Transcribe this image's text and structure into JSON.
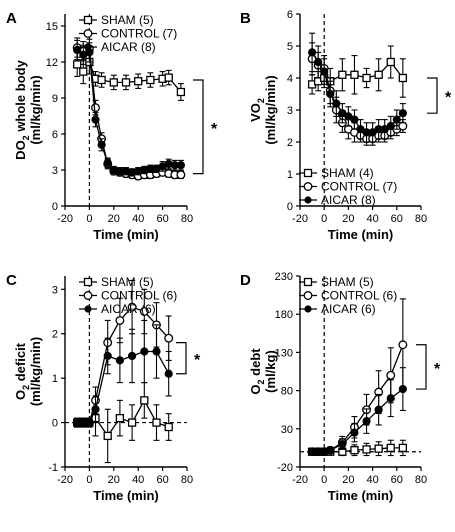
{
  "chart_data": [
    {
      "panel": "A",
      "type": "line",
      "ylabel": [
        "DO",
        "2",
        " whole body"
      ],
      "yunit": "(ml/kg/min)",
      "xlabel": "Time (min)",
      "xlim": [
        -20,
        80
      ],
      "ylim": [
        0,
        16
      ],
      "xticks": [
        "-20",
        "0",
        "20",
        "40",
        "60",
        "80"
      ],
      "yticks": [
        "0",
        "3",
        "6",
        "9",
        "12",
        "15"
      ],
      "ytick_values": [
        0,
        3,
        6,
        9,
        12,
        15
      ],
      "significance": "*",
      "series": [
        {
          "name": "SHAM (5)",
          "marker": "square",
          "points": [
            [
              -10,
              11.8
            ],
            [
              -5,
              11.2
            ],
            [
              0,
              12.0
            ],
            [
              5,
              10.6
            ],
            [
              10,
              10.5
            ],
            [
              20,
              10.3
            ],
            [
              30,
              10.3
            ],
            [
              40,
              10.4
            ],
            [
              50,
              10.5
            ],
            [
              60,
              10.6
            ],
            [
              65,
              10.7
            ],
            [
              75,
              9.5
            ]
          ],
          "err": [
            1.0,
            1.0,
            1.0,
            0.6,
            0.6,
            0.6,
            0.6,
            0.6,
            0.6,
            0.6,
            0.6,
            0.7
          ]
        },
        {
          "name": "CONTROL (7)",
          "marker": "open-circle",
          "points": [
            [
              -10,
              13.2
            ],
            [
              -5,
              12.9
            ],
            [
              0,
              13.1
            ],
            [
              5,
              8.2
            ],
            [
              10,
              5.6
            ],
            [
              15,
              3.5
            ],
            [
              20,
              2.9
            ],
            [
              25,
              2.8
            ],
            [
              30,
              2.7
            ],
            [
              35,
              2.6
            ],
            [
              40,
              2.5
            ],
            [
              45,
              2.6
            ],
            [
              50,
              2.6
            ],
            [
              55,
              2.7
            ],
            [
              60,
              2.8
            ],
            [
              65,
              2.7
            ],
            [
              70,
              2.6
            ],
            [
              75,
              2.6
            ]
          ],
          "err": [
            0.8,
            0.8,
            0.8,
            0.6,
            0.5,
            0.4,
            0.3,
            0.3,
            0.3,
            0.3,
            0.3,
            0.3,
            0.3,
            0.3,
            0.3,
            0.3,
            0.3,
            0.3
          ]
        },
        {
          "name": "AICAR (8)",
          "marker": "filled-circle",
          "points": [
            [
              -10,
              13.0
            ],
            [
              -5,
              12.6
            ],
            [
              0,
              12.8
            ],
            [
              5,
              7.2
            ],
            [
              10,
              5.1
            ],
            [
              15,
              3.6
            ],
            [
              20,
              3.0
            ],
            [
              25,
              2.9
            ],
            [
              30,
              2.9
            ],
            [
              35,
              2.8
            ],
            [
              40,
              2.9
            ],
            [
              45,
              3.0
            ],
            [
              50,
              3.1
            ],
            [
              55,
              3.1
            ],
            [
              60,
              3.3
            ],
            [
              65,
              3.5
            ],
            [
              70,
              3.4
            ],
            [
              75,
              3.4
            ]
          ],
          "err": [
            0.8,
            0.8,
            0.8,
            0.6,
            0.5,
            0.4,
            0.3,
            0.3,
            0.3,
            0.3,
            0.3,
            0.3,
            0.3,
            0.3,
            0.4,
            0.4,
            0.4,
            0.4
          ]
        }
      ]
    },
    {
      "panel": "B",
      "type": "line",
      "ylabel": [
        "VO",
        "2",
        ""
      ],
      "yunit": "(ml/kg/min)",
      "xlabel": "Time (min)",
      "xlim": [
        -20,
        80
      ],
      "ylim": [
        0,
        6
      ],
      "xticks": [
        "-20",
        "0",
        "20",
        "40",
        "60",
        "80"
      ],
      "yticks": [
        "0",
        "1",
        "2",
        "3",
        "4",
        "5",
        "6"
      ],
      "ytick_values": [
        0,
        1,
        2,
        3,
        4,
        5,
        6
      ],
      "significance": "*",
      "series": [
        {
          "name": "SHAM (4)",
          "marker": "square",
          "points": [
            [
              -10,
              3.8
            ],
            [
              -5,
              3.9
            ],
            [
              0,
              4.0
            ],
            [
              5,
              3.9
            ],
            [
              15,
              4.1
            ],
            [
              25,
              4.1
            ],
            [
              35,
              4.0
            ],
            [
              45,
              4.1
            ],
            [
              55,
              4.5
            ],
            [
              65,
              4.0
            ]
          ],
          "err": [
            0.3,
            0.3,
            0.3,
            0.4,
            0.5,
            0.6,
            0.3,
            0.5,
            0.5,
            0.6
          ]
        },
        {
          "name": "CONTROL (7)",
          "marker": "open-circle",
          "points": [
            [
              -10,
              4.6
            ],
            [
              -5,
              4.4
            ],
            [
              0,
              4.3
            ],
            [
              5,
              3.6
            ],
            [
              10,
              3.0
            ],
            [
              15,
              2.6
            ],
            [
              20,
              2.4
            ],
            [
              25,
              2.3
            ],
            [
              30,
              2.2
            ],
            [
              35,
              2.1
            ],
            [
              40,
              2.1
            ],
            [
              45,
              2.2
            ],
            [
              50,
              2.2
            ],
            [
              55,
              2.3
            ],
            [
              60,
              2.4
            ],
            [
              65,
              2.5
            ]
          ],
          "err": [
            0.5,
            0.4,
            0.4,
            0.4,
            0.4,
            0.3,
            0.3,
            0.3,
            0.2,
            0.2,
            0.2,
            0.2,
            0.2,
            0.2,
            0.2,
            0.2
          ]
        },
        {
          "name": "AICAR (8)",
          "marker": "filled-circle",
          "points": [
            [
              -10,
              4.8
            ],
            [
              -5,
              4.5
            ],
            [
              0,
              4.2
            ],
            [
              5,
              3.5
            ],
            [
              10,
              3.2
            ],
            [
              15,
              2.9
            ],
            [
              20,
              2.8
            ],
            [
              25,
              2.7
            ],
            [
              30,
              2.4
            ],
            [
              35,
              2.3
            ],
            [
              40,
              2.3
            ],
            [
              45,
              2.4
            ],
            [
              50,
              2.4
            ],
            [
              55,
              2.5
            ],
            [
              60,
              2.7
            ],
            [
              65,
              2.9
            ]
          ],
          "err": [
            0.6,
            0.5,
            0.4,
            0.4,
            0.4,
            0.3,
            0.3,
            0.3,
            0.3,
            0.3,
            0.3,
            0.3,
            0.3,
            0.3,
            0.3,
            0.3
          ]
        }
      ]
    },
    {
      "panel": "C",
      "type": "line",
      "ylabel": [
        "O",
        "2",
        " deficit"
      ],
      "yunit": "(ml/kg/min)",
      "xlabel": "Time (min)",
      "xlim": [
        -20,
        80
      ],
      "ylim": [
        -1,
        3.3
      ],
      "xticks": [
        "-20",
        "0",
        "20",
        "40",
        "60",
        "80"
      ],
      "yticks": [
        "-1",
        "0",
        "1",
        "2",
        "3"
      ],
      "ytick_values": [
        -1,
        0,
        1,
        2,
        3
      ],
      "significance": "*",
      "series": [
        {
          "name": "SHAM (5)",
          "marker": "square",
          "points": [
            [
              -10,
              0.0
            ],
            [
              -5,
              0.0
            ],
            [
              0,
              0.0
            ],
            [
              5,
              0.1
            ],
            [
              15,
              -0.3
            ],
            [
              25,
              0.1
            ],
            [
              35,
              0.0
            ],
            [
              45,
              0.5
            ],
            [
              55,
              0.0
            ],
            [
              65,
              -0.1
            ]
          ],
          "err": [
            0.1,
            0.1,
            0.1,
            0.4,
            0.6,
            0.4,
            0.4,
            0.4,
            0.4,
            0.3
          ]
        },
        {
          "name": "CONTROL (6)",
          "marker": "open-circle",
          "points": [
            [
              -10,
              0.0
            ],
            [
              -5,
              0.0
            ],
            [
              0,
              0.0
            ],
            [
              5,
              0.5
            ],
            [
              15,
              1.8
            ],
            [
              25,
              2.3
            ],
            [
              35,
              2.6
            ],
            [
              45,
              2.5
            ],
            [
              55,
              2.2
            ],
            [
              65,
              1.9
            ]
          ],
          "err": [
            0.1,
            0.1,
            0.1,
            0.3,
            0.5,
            0.5,
            0.6,
            0.5,
            0.5,
            0.5
          ]
        },
        {
          "name": "AICAR (6)",
          "marker": "filled-circle",
          "points": [
            [
              -10,
              0.0
            ],
            [
              -5,
              0.0
            ],
            [
              0,
              0.0
            ],
            [
              5,
              0.3
            ],
            [
              15,
              1.5
            ],
            [
              25,
              1.4
            ],
            [
              35,
              1.5
            ],
            [
              45,
              1.6
            ],
            [
              55,
              1.6
            ],
            [
              65,
              1.1
            ]
          ],
          "err": [
            0.1,
            0.1,
            0.1,
            0.3,
            0.4,
            0.5,
            0.6,
            0.7,
            0.6,
            0.5
          ]
        }
      ]
    },
    {
      "panel": "D",
      "type": "line",
      "ylabel": [
        "O",
        "2",
        " debt"
      ],
      "yunit": "(ml/kg)",
      "xlabel": "Time (min)",
      "xlim": [
        -20,
        80
      ],
      "ylim": [
        -20,
        230
      ],
      "xticks": [
        "-20",
        "0",
        "20",
        "40",
        "60",
        "80"
      ],
      "yticks": [
        "-20",
        "30",
        "80",
        "130",
        "180",
        "230"
      ],
      "ytick_values": [
        -20,
        30,
        80,
        130,
        180,
        230
      ],
      "significance": "*",
      "series": [
        {
          "name": "SHAM (5)",
          "marker": "square",
          "points": [
            [
              -10,
              0
            ],
            [
              -5,
              0
            ],
            [
              0,
              0
            ],
            [
              5,
              0
            ],
            [
              15,
              0
            ],
            [
              25,
              2
            ],
            [
              35,
              3
            ],
            [
              45,
              4
            ],
            [
              55,
              5
            ],
            [
              65,
              5
            ]
          ],
          "err": [
            2,
            2,
            2,
            3,
            5,
            7,
            8,
            9,
            10,
            10
          ]
        },
        {
          "name": "CONTROL (6)",
          "marker": "open-circle",
          "points": [
            [
              -10,
              0
            ],
            [
              -5,
              0
            ],
            [
              0,
              0
            ],
            [
              5,
              2
            ],
            [
              15,
              12
            ],
            [
              25,
              32
            ],
            [
              35,
              55
            ],
            [
              45,
              78
            ],
            [
              55,
              100
            ],
            [
              65,
              140
            ]
          ],
          "err": [
            2,
            2,
            2,
            4,
            8,
            14,
            20,
            28,
            36,
            60
          ]
        },
        {
          "name": "AICAR (6)",
          "marker": "filled-circle",
          "points": [
            [
              -10,
              0
            ],
            [
              -5,
              0
            ],
            [
              0,
              0
            ],
            [
              5,
              2
            ],
            [
              15,
              10
            ],
            [
              25,
              25
            ],
            [
              35,
              40
            ],
            [
              45,
              55
            ],
            [
              55,
              70
            ],
            [
              65,
              82
            ]
          ],
          "err": [
            2,
            2,
            2,
            4,
            7,
            12,
            16,
            20,
            24,
            28
          ]
        }
      ]
    }
  ]
}
